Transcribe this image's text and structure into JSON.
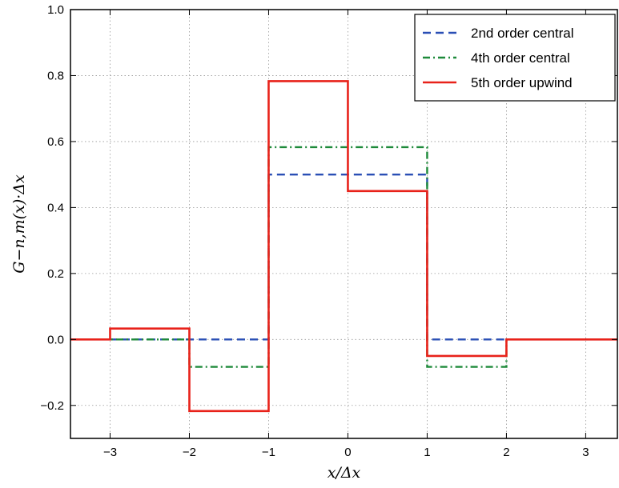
{
  "chart_data": {
    "type": "line",
    "title": "",
    "xlabel": "x/Δx",
    "ylabel": "G−n,m(x)·Δx",
    "xlim": [
      -3.5,
      3.4
    ],
    "ylim": [
      -0.3,
      1.0
    ],
    "grid": true,
    "legend_position": "top-right",
    "xticks": [
      -3,
      -2,
      -1,
      0,
      1,
      2,
      3
    ],
    "xtick_labels": [
      "−3",
      "−2",
      "−1",
      "0",
      "1",
      "2",
      "3"
    ],
    "yticks": [
      1.0,
      0.8,
      0.6,
      0.4,
      0.2,
      0.0,
      -0.2
    ],
    "ytick_labels": [
      "1.0",
      "0.8",
      "0.6",
      "0.4",
      "0.2",
      "0.0",
      "−0.2"
    ],
    "series": [
      {
        "name": "2nd order central",
        "color": "#2a4fb5",
        "style": "dashed",
        "x": [
          -3.5,
          -1,
          -1,
          1,
          1,
          3.4
        ],
        "y": [
          0,
          0,
          0.5,
          0.5,
          0,
          0
        ]
      },
      {
        "name": "4th order central",
        "color": "#1e8a3a",
        "style": "dashdot",
        "x": [
          -3.5,
          -2,
          -2,
          -1,
          -1,
          1,
          1,
          2,
          2,
          3.4
        ],
        "y": [
          0,
          0,
          -0.083,
          -0.083,
          0.583,
          0.583,
          -0.083,
          -0.083,
          0,
          0
        ]
      },
      {
        "name": "5th order upwind",
        "color": "#e8221a",
        "style": "solid",
        "x": [
          -3.5,
          -3,
          -3,
          -2,
          -2,
          -1,
          -1,
          0,
          0,
          1,
          1,
          2,
          2,
          3.4
        ],
        "y": [
          0,
          0,
          0.033,
          0.033,
          -0.217,
          -0.217,
          0.783,
          0.783,
          0.45,
          0.45,
          -0.05,
          -0.05,
          0,
          0
        ]
      }
    ]
  }
}
